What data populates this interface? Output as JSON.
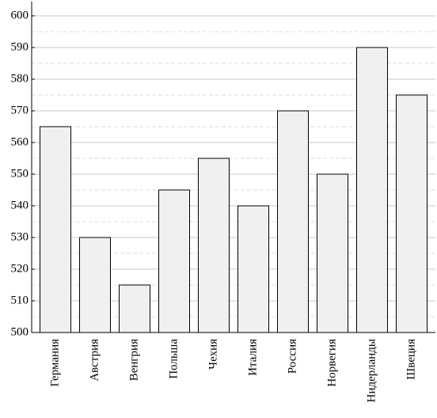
{
  "chart_data": {
    "type": "bar",
    "categories": [
      "Германия",
      "Австрия",
      "Венгрия",
      "Польша",
      "Чехия",
      "Италия",
      "Россия",
      "Норвегия",
      "Нидерланды",
      "Швеция"
    ],
    "values": [
      565,
      530,
      515,
      545,
      555,
      540,
      570,
      550,
      590,
      575
    ],
    "color": "#f0f0f0",
    "ylim": [
      500,
      604.5
    ],
    "yticks": [
      500,
      510,
      520,
      530,
      540,
      550,
      560,
      570,
      580,
      590,
      600
    ],
    "minor_yticks": [
      505,
      515,
      525,
      535,
      545,
      555,
      565,
      575,
      585,
      595
    ],
    "grid": true
  }
}
